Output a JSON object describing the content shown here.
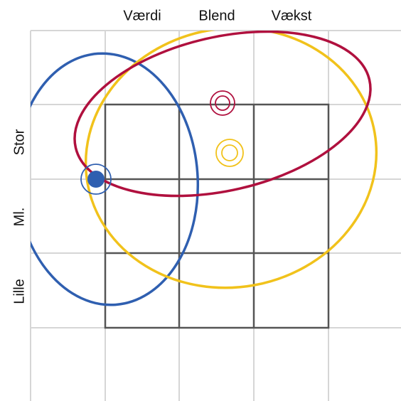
{
  "columns": [
    "Værdi",
    "Blend",
    "Vækst"
  ],
  "rows": [
    "Stor",
    "Ml.",
    "Lille"
  ]
}
